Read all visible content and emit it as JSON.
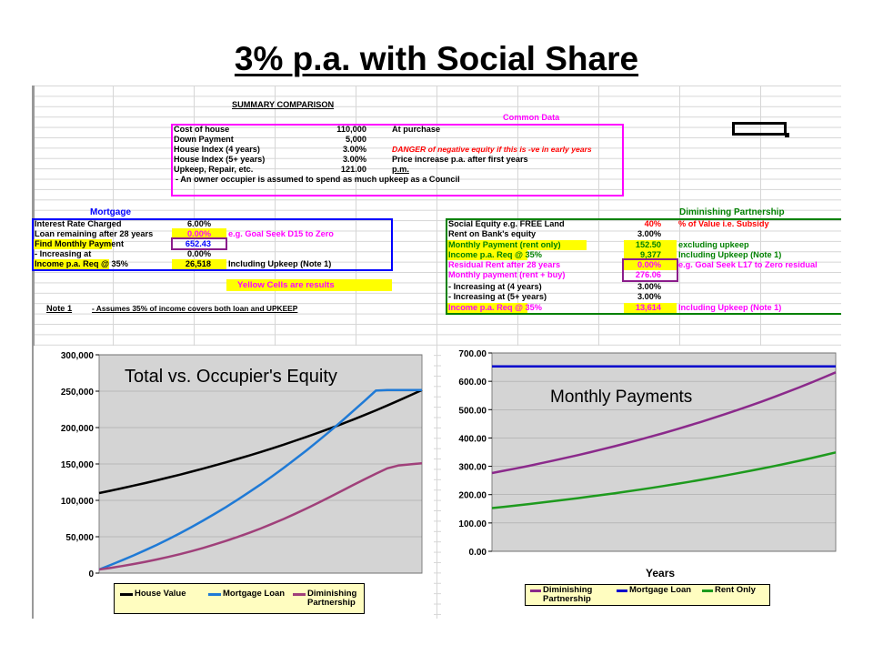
{
  "slide": {
    "title": "3% p.a. with Social Share"
  },
  "sheet": {
    "summary_title": "SUMMARY COMPARISON",
    "common_data": {
      "header": "Common Data",
      "rows": [
        {
          "label": "Cost of house",
          "value": "110,000",
          "note": "At purchase"
        },
        {
          "label": "Down Payment",
          "value": "5,000",
          "note": ""
        },
        {
          "label": "House Index (4 years)",
          "value": "3.00%",
          "note": "DANGER of negative equity if this is -ve in early years"
        },
        {
          "label": "House Index (5+ years)",
          "value": "3.00%",
          "note": "Price increase p.a. after first years"
        },
        {
          "label": "Upkeep, Repair, etc.",
          "value": "121.00",
          "note": "p.m."
        }
      ],
      "footnote": "- An owner occupier is assumed to spend as much upkeep as a Council"
    },
    "mortgage": {
      "header": "Mortgage",
      "rows": [
        {
          "label": "Interest Rate Charged",
          "value": "6.00%",
          "note": ""
        },
        {
          "label": "Loan remaining after 28 years",
          "value": "0.00%",
          "note": "e.g. Goal Seek D15 to Zero"
        },
        {
          "label": "Find Monthly Payment",
          "value": "652.43",
          "note": ""
        },
        {
          "label": "- Increasing at",
          "value": "0.00%",
          "note": ""
        },
        {
          "label": "Income p.a. Req @ 35%",
          "value": "26,518",
          "note": "Including Upkeep (Note 1)"
        }
      ]
    },
    "yellow_note": "Yellow Cells are results",
    "note1": {
      "label": "Note 1",
      "text": "- Assumes 35% of income covers both loan and UPKEEP"
    },
    "partnership": {
      "header": "Diminishing Partnership",
      "rows": [
        {
          "label": "Social Equity e.g. FREE Land",
          "value": "40%",
          "note": "% of Value  i.e. Subsidy"
        },
        {
          "label": "Rent on Bank's equity",
          "value": "3.00%",
          "note": ""
        },
        {
          "label": "Monthly Payment (rent only)",
          "value": "152.50",
          "note": "excluding upkeep"
        },
        {
          "label": "Income p.a. Req @ 35%",
          "value": "9,377",
          "note": "Including Upkeep (Note 1)"
        },
        {
          "label": "Residual Rent after 28 years",
          "value": "0.00%",
          "note": "e.g. Goal Seek L17 to Zero residual"
        },
        {
          "label": "Monthly payment (rent + buy)",
          "value": "276.06",
          "note": ""
        },
        {
          "label": " - Increasing at (4 years)",
          "value": "3.00%",
          "note": ""
        },
        {
          "label": " - Increasing at (5+ years)",
          "value": "3.00%",
          "note": ""
        },
        {
          "label": "Income p.a. Req @ 35%",
          "value": "13,614",
          "note": "Including Upkeep (Note 1)"
        }
      ]
    }
  },
  "colors": {
    "magenta": "#ff00ff",
    "blue": "#0000ff",
    "green": "#008000",
    "red": "#ff0000",
    "yellow": "#ffff00",
    "plot_bg": "#d4d4d4",
    "legend_bg": "#fffdc0"
  },
  "chart_data": [
    {
      "type": "line",
      "title": "Total vs. Occupier's Equity",
      "x": [
        0,
        1,
        2,
        3,
        4,
        5,
        6,
        7,
        8,
        9,
        10,
        11,
        12,
        13,
        14,
        15,
        16,
        17,
        18,
        19,
        20,
        21,
        22,
        23,
        24,
        25,
        26,
        27,
        28
      ],
      "ylim": [
        0,
        300000
      ],
      "yticks": [
        "0",
        "50,000",
        "100,000",
        "150,000",
        "200,000",
        "250,000",
        "300,000"
      ],
      "yticks_values": [
        0,
        50000,
        100000,
        150000,
        200000,
        250000,
        300000
      ],
      "series": [
        {
          "name": "House Value",
          "color": "#000000",
          "values": [
            110000,
            113300,
            116699,
            120200,
            123806,
            127520,
            131346,
            135286,
            139345,
            143525,
            147831,
            152266,
            156834,
            161539,
            166385,
            171376,
            176518,
            181813,
            187268,
            192886,
            198672,
            204633,
            210772,
            217095,
            223608,
            230316,
            237226,
            244343,
            251673
          ]
        },
        {
          "name": "Mortgage Loan",
          "color": "#1f7ad6",
          "values": [
            5000,
            11300,
            17700,
            24400,
            31500,
            38800,
            46500,
            54600,
            63100,
            72000,
            81200,
            90800,
            100800,
            111100,
            121800,
            133000,
            144500,
            156500,
            168800,
            181600,
            194800,
            208400,
            222300,
            236400,
            250700,
            251673,
            251673,
            251673,
            251673
          ]
        },
        {
          "name": "Diminishing Partnership",
          "color": "#a0407a",
          "values": [
            5000,
            7300,
            9800,
            12500,
            15500,
            18700,
            22200,
            26000,
            30100,
            34500,
            39200,
            44200,
            49600,
            55300,
            61300,
            67700,
            74400,
            81500,
            88900,
            96600,
            104500,
            112600,
            120700,
            128700,
            136500,
            144000,
            148000,
            149500,
            151000
          ]
        }
      ]
    },
    {
      "type": "line",
      "title": "Monthly Payments",
      "xlabel": "Years",
      "x": [
        0,
        1,
        2,
        3,
        4,
        5,
        6,
        7,
        8,
        9,
        10,
        11,
        12,
        13,
        14,
        15,
        16,
        17,
        18,
        19,
        20,
        21,
        22,
        23,
        24,
        25,
        26,
        27,
        28
      ],
      "ylim": [
        0,
        700
      ],
      "yticks": [
        "0.00",
        "100.00",
        "200.00",
        "300.00",
        "400.00",
        "500.00",
        "600.00",
        "700.00"
      ],
      "yticks_values": [
        0,
        100,
        200,
        300,
        400,
        500,
        600,
        700
      ],
      "series": [
        {
          "name": "Diminishing Partnership",
          "color": "#8b2a8b",
          "values": [
            276.06,
            284.34,
            292.87,
            301.66,
            310.71,
            320.03,
            329.63,
            339.52,
            349.71,
            360.2,
            371.0,
            382.13,
            393.6,
            405.4,
            417.57,
            430.09,
            442.99,
            456.28,
            469.97,
            484.07,
            498.59,
            513.55,
            528.96,
            544.83,
            561.17,
            578.01,
            595.35,
            613.21,
            631.6
          ]
        },
        {
          "name": "Mortgage Loan",
          "color": "#0000cc",
          "values": [
            652.43,
            652.43,
            652.43,
            652.43,
            652.43,
            652.43,
            652.43,
            652.43,
            652.43,
            652.43,
            652.43,
            652.43,
            652.43,
            652.43,
            652.43,
            652.43,
            652.43,
            652.43,
            652.43,
            652.43,
            652.43,
            652.43,
            652.43,
            652.43,
            652.43,
            652.43,
            652.43,
            652.43,
            652.43
          ]
        },
        {
          "name": "Rent Only",
          "color": "#1e9a1e",
          "values": [
            152.5,
            157.08,
            161.79,
            166.64,
            171.64,
            176.79,
            182.09,
            187.56,
            193.18,
            198.98,
            204.95,
            211.1,
            217.43,
            223.95,
            230.67,
            237.59,
            244.72,
            252.06,
            259.63,
            267.41,
            275.44,
            283.7,
            292.21,
            300.97,
            310.0,
            319.3,
            328.88,
            338.75,
            348.91
          ]
        }
      ]
    }
  ]
}
